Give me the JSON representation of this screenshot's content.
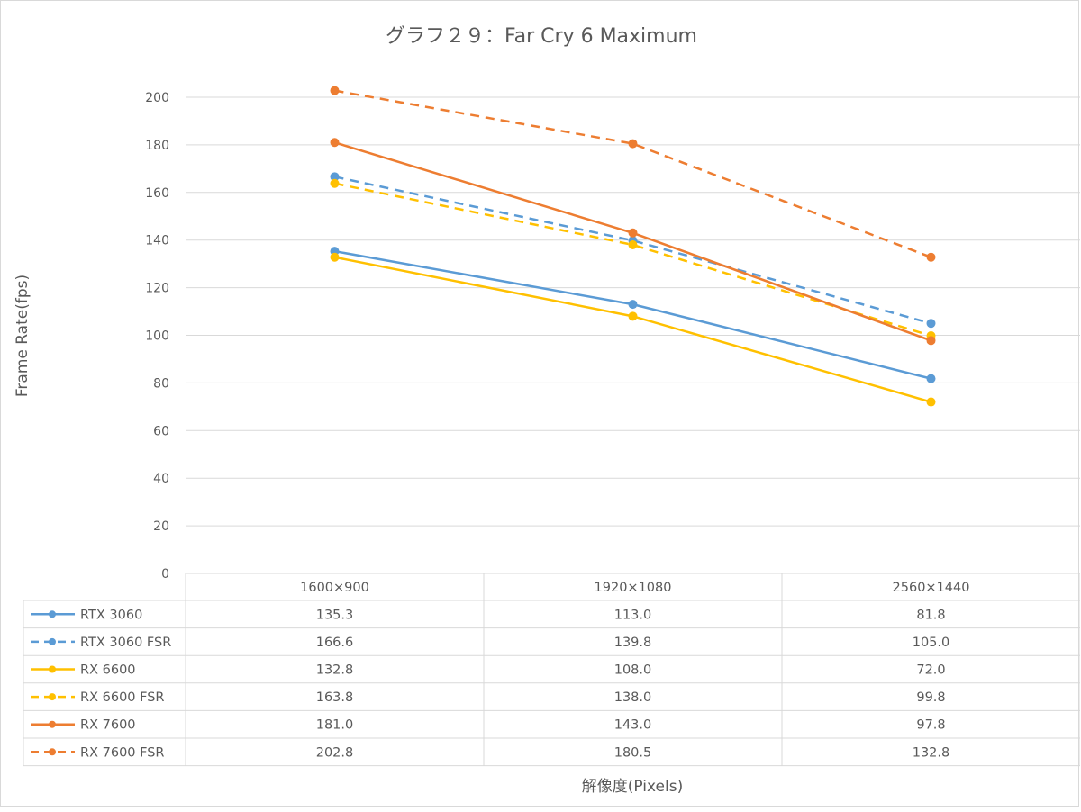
{
  "chart_data": {
    "type": "line",
    "title": "グラフ２９：Far Cry 6 Maximum",
    "xlabel": "解像度(Pixels)",
    "ylabel": "Frame Rate(fps)",
    "ylim": [
      0,
      200
    ],
    "yticks": [
      0,
      20,
      40,
      60,
      80,
      100,
      120,
      140,
      160,
      180,
      200
    ],
    "grid": true,
    "legend": "data-table",
    "categories": [
      "1600×900",
      "1920×1080",
      "2560×1440"
    ],
    "series": [
      {
        "name": "RTX 3060",
        "color": "#5b9bd5",
        "dashed": false,
        "values": [
          135.3,
          113.0,
          81.8
        ],
        "labels": [
          "135.3",
          "113.0",
          "81.8"
        ]
      },
      {
        "name": "RTX 3060 FSR",
        "color": "#5b9bd5",
        "dashed": true,
        "values": [
          166.6,
          139.8,
          105.0
        ],
        "labels": [
          "166.6",
          "139.8",
          "105.0"
        ]
      },
      {
        "name": "RX 6600",
        "color": "#ffc000",
        "dashed": false,
        "values": [
          132.8,
          108.0,
          72.0
        ],
        "labels": [
          "132.8",
          "108.0",
          "72.0"
        ]
      },
      {
        "name": "RX 6600 FSR",
        "color": "#ffc000",
        "dashed": true,
        "values": [
          163.8,
          138.0,
          99.8
        ],
        "labels": [
          "163.8",
          "138.0",
          "99.8"
        ]
      },
      {
        "name": "RX 7600",
        "color": "#ed7d31",
        "dashed": false,
        "values": [
          181.0,
          143.0,
          97.8
        ],
        "labels": [
          "181.0",
          "143.0",
          "97.8"
        ]
      },
      {
        "name": "RX 7600 FSR",
        "color": "#ed7d31",
        "dashed": true,
        "values": [
          202.8,
          180.5,
          132.8
        ],
        "labels": [
          "202.8",
          "180.5",
          "132.8"
        ]
      }
    ]
  }
}
